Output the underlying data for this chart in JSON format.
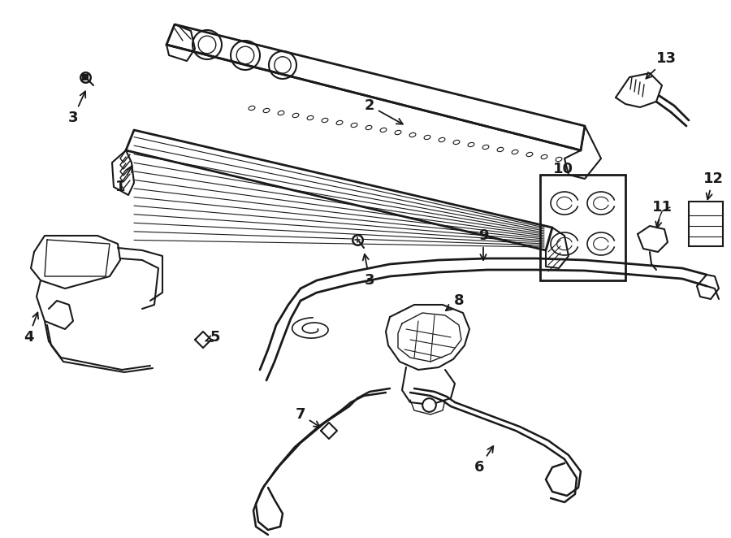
{
  "bg": "#ffffff",
  "lc": "#1a1a1a",
  "figsize": [
    9.0,
    6.62
  ],
  "dpi": 100,
  "fs": 13,
  "fw": "bold"
}
